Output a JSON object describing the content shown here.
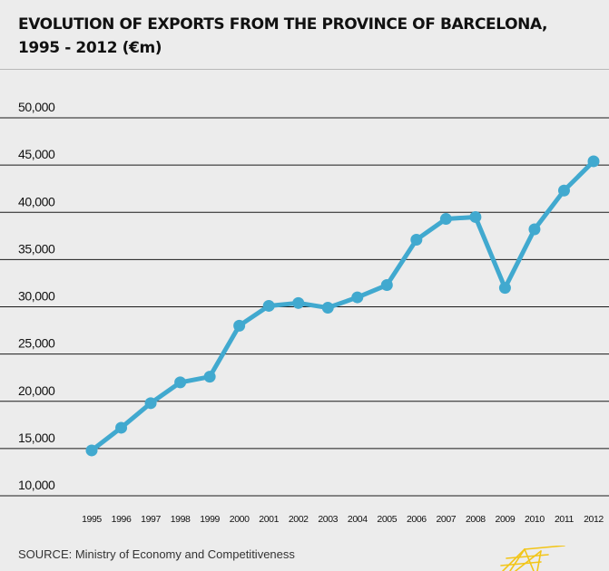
{
  "chart_data": {
    "type": "line",
    "title": "EVOLUTION OF EXPORTS FROM THE PROVINCE OF BARCELONA,",
    "subtitle": "1995 - 2012 (€m)",
    "xlabel": "",
    "ylabel": "",
    "categories": [
      "1995",
      "1996",
      "1997",
      "1998",
      "1999",
      "2000",
      "2001",
      "2002",
      "2003",
      "2004",
      "2005",
      "2006",
      "2007",
      "2008",
      "2009",
      "2010",
      "2011",
      "2012"
    ],
    "series": [
      {
        "values": [
          14800,
          17200,
          19800,
          22000,
          22600,
          28000,
          30100,
          30400,
          29900,
          31000,
          32300,
          37100,
          39300,
          39500,
          32000,
          38200,
          42300,
          45400
        ]
      }
    ],
    "yticks": [
      "50,000",
      "45,000",
      "40,000",
      "35,000",
      "30,000",
      "25,000",
      "20,000",
      "15,000",
      "10,000"
    ],
    "ylim": [
      10000,
      50000
    ],
    "grid": true,
    "legend": "none",
    "colors": {
      "line": "#41a9cf",
      "grid": "#1a1a1a",
      "background": "#ececec",
      "logo": "#f2c518"
    }
  },
  "source": "SOURCE: Ministry of Economy and Competitiveness",
  "logo_icon": "tower-lines-icon"
}
